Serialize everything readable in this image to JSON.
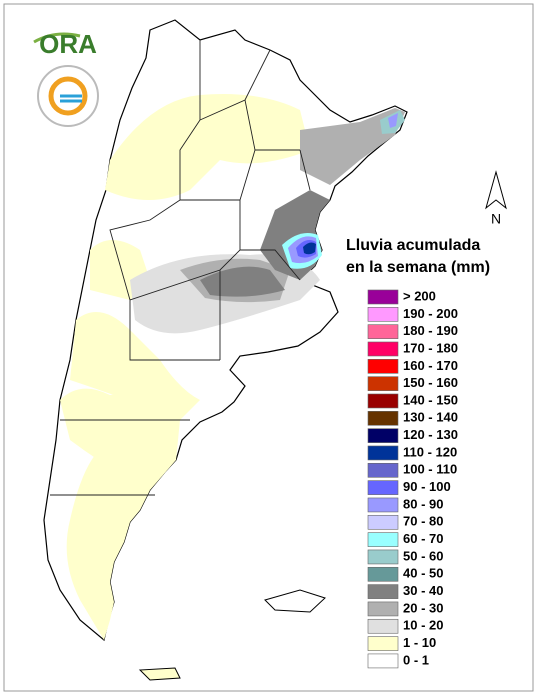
{
  "logo": {
    "text": "ORA"
  },
  "north_arrow": "N",
  "legend": {
    "title_lines": [
      "Lluvia acumulada",
      "en la semana (mm)"
    ],
    "items": [
      {
        "label": "> 200",
        "color": "#990099"
      },
      {
        "label": "190 - 200",
        "color": "#ff99ff"
      },
      {
        "label": "180 - 190",
        "color": "#ff6699"
      },
      {
        "label": "170 - 180",
        "color": "#ff0066"
      },
      {
        "label": "160 - 170",
        "color": "#ff0000"
      },
      {
        "label": "150 - 160",
        "color": "#cc3300"
      },
      {
        "label": "140 - 150",
        "color": "#990000"
      },
      {
        "label": "130 - 140",
        "color": "#663300"
      },
      {
        "label": "120 - 130",
        "color": "#000066"
      },
      {
        "label": "110 - 120",
        "color": "#003399"
      },
      {
        "label": "100 - 110",
        "color": "#6666cc"
      },
      {
        "label": "90 - 100",
        "color": "#6666ff"
      },
      {
        "label": "80 - 90",
        "color": "#9999ff"
      },
      {
        "label": "70 - 80",
        "color": "#ccccff"
      },
      {
        "label": "60 - 70",
        "color": "#99ffff"
      },
      {
        "label": "50 - 60",
        "color": "#99cccc"
      },
      {
        "label": "40 - 50",
        "color": "#669999"
      },
      {
        "label": "30 - 40",
        "color": "#808080"
      },
      {
        "label": "20 - 30",
        "color": "#b0b0b0"
      },
      {
        "label": "10 - 20",
        "color": "#e0e0e0"
      },
      {
        "label": "1 - 10",
        "color": "#ffffcc"
      },
      {
        "label": "0 - 1",
        "color": "#ffffff"
      }
    ]
  }
}
